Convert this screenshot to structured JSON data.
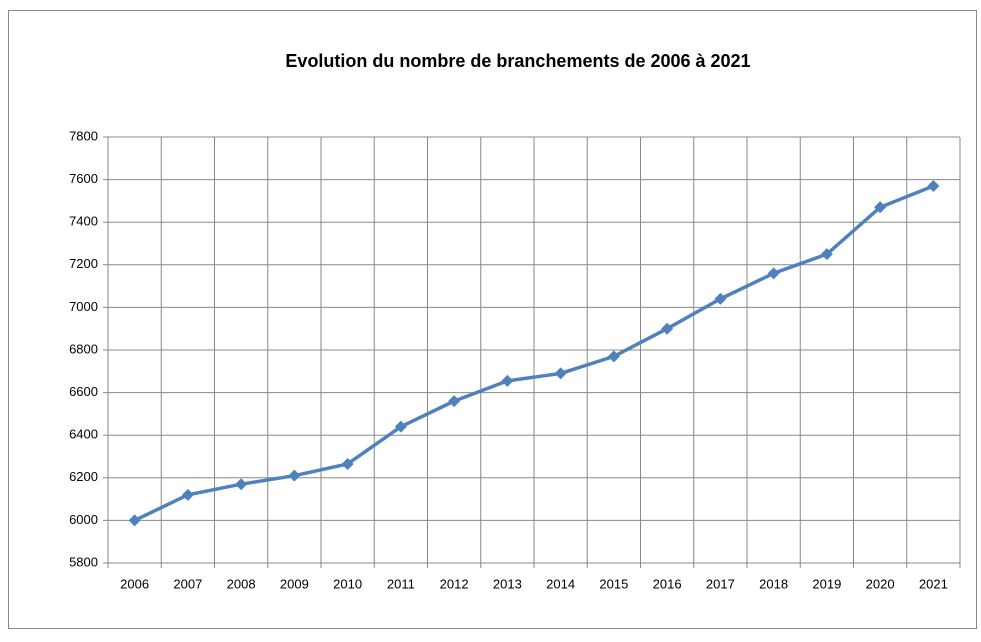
{
  "chart_data": {
    "type": "line",
    "title": "Evolution du nombre de branchements de 2006 à 2021",
    "categories": [
      "2006",
      "2007",
      "2008",
      "2009",
      "2010",
      "2011",
      "2012",
      "2013",
      "2014",
      "2015",
      "2016",
      "2017",
      "2018",
      "2019",
      "2020",
      "2021"
    ],
    "series": [
      {
        "name": null,
        "color": "#4f81bd",
        "values": [
          6000,
          6120,
          6170,
          6210,
          6265,
          6440,
          6560,
          6655,
          6690,
          6770,
          6900,
          7040,
          7160,
          7250,
          7470,
          7570
        ]
      }
    ],
    "ylim": [
      5800,
      7800
    ],
    "yticks": [
      5800,
      6000,
      6200,
      6400,
      6600,
      6800,
      7000,
      7200,
      7400,
      7600,
      7800
    ],
    "grid": true
  }
}
